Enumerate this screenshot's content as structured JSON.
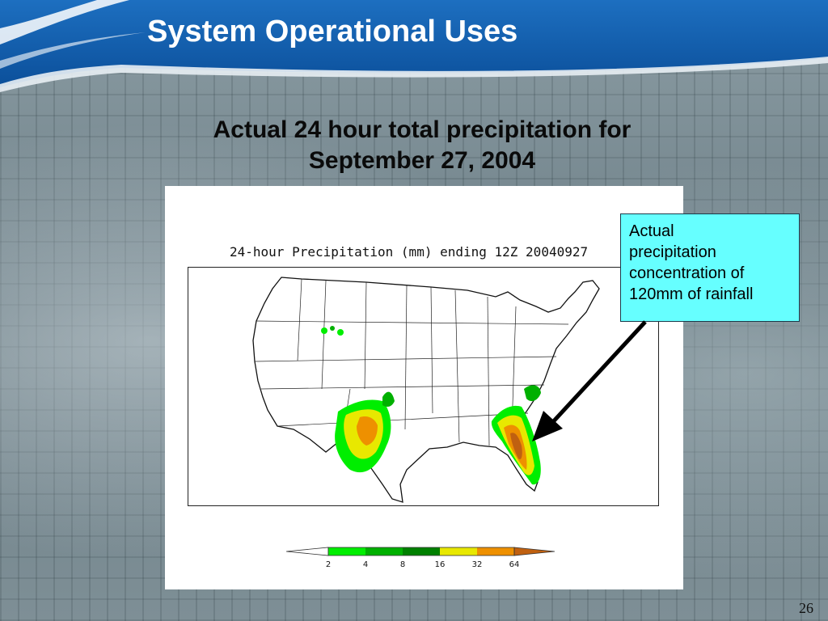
{
  "slide": {
    "title": "System Operational Uses",
    "subtitle_lines": [
      "Actual 24 hour total precipitation for",
      "September 27, 2004"
    ],
    "page_number": "26"
  },
  "map": {
    "title": "24-hour Precipitation (mm) ending 12Z 20040927",
    "region": "Continental United States",
    "colorbar": {
      "ticks": [
        "2",
        "4",
        "8",
        "16",
        "32",
        "64"
      ],
      "colors": [
        "#ffffff",
        "#00ee00",
        "#00b000",
        "#008000",
        "#e8e800",
        "#ee9000",
        "#c06010"
      ]
    },
    "precip_areas": [
      {
        "name": "Texas/Oklahoma",
        "levels": [
          "2-4",
          "4-8",
          "8-16",
          "16-32",
          "32-64"
        ]
      },
      {
        "name": "Florida/Georgia/Carolinas",
        "levels": [
          "2-4",
          "4-8",
          "8-16",
          "16-32",
          "32-64",
          ">64"
        ]
      }
    ]
  },
  "callout": {
    "lines": [
      "Actual",
      "precipitation",
      "concentration of",
      "120mm of rainfall"
    ],
    "color": "#66ffff"
  }
}
